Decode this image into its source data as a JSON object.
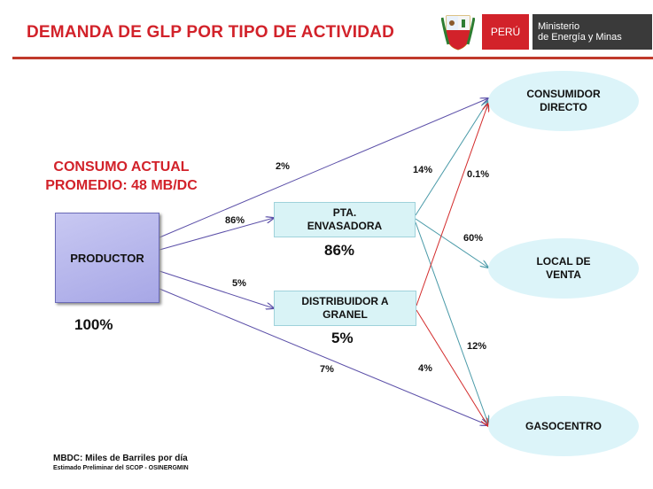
{
  "header": {
    "title": "DEMANDA DE GLP POR TIPO DE ACTIVIDAD",
    "peru_label": "PERÚ",
    "ministry_line1": "Ministerio",
    "ministry_line2": "de Energía y Minas"
  },
  "diagram": {
    "consumo_line1": "CONSUMO ACTUAL",
    "consumo_line2": "PROMEDIO: 48 MB/DC",
    "nodes": {
      "productor": {
        "label": "PRODUCTOR",
        "share": "100%"
      },
      "envasadora": {
        "line1": "PTA.",
        "line2": "ENVASADORA",
        "share": "86%"
      },
      "distribuidor": {
        "line1": "DISTRIBUIDOR A",
        "line2": "GRANEL",
        "share": "5%"
      },
      "consumidor": {
        "line1": "CONSUMIDOR",
        "line2": "DIRECTO"
      },
      "local": {
        "line1": "LOCAL DE",
        "line2": "VENTA"
      },
      "gasocentro": {
        "label": "GASOCENTRO"
      }
    },
    "flows": {
      "productor_consumidor": "2%",
      "productor_envasadora": "86%",
      "productor_distribuidor": "5%",
      "productor_gasocentro": "7%",
      "envasadora_consumidor": "14%",
      "distribuidor_consumidor": "0.1%",
      "envasadora_local": "60%",
      "envasadora_gasocentro": "12%",
      "distribuidor_gasocentro": "4%"
    },
    "colors": {
      "productor_arrows": "#5b4fa8",
      "envasadora_arrows": "#4a9aa8",
      "distribuidor_arrows": "#d32b2b"
    }
  },
  "footer": {
    "note1": "MBDC: Miles de Barriles por día",
    "note2": "Estimado Preliminar del SCOP - OSINERGMIN"
  }
}
